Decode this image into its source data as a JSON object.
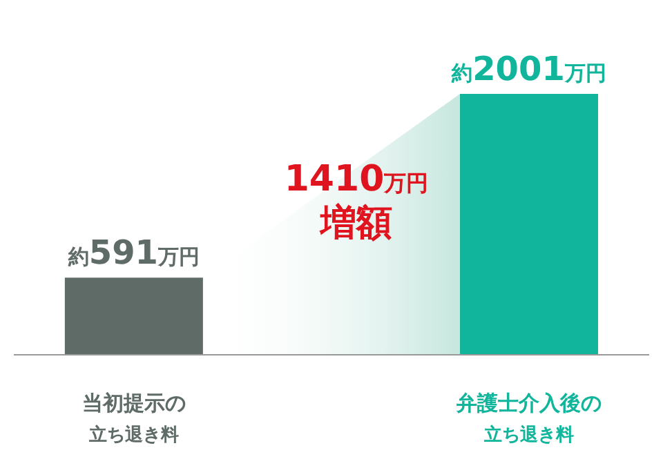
{
  "chart_data": {
    "type": "bar",
    "categories": [
      "当初提示の立ち退き料",
      "弁護士介入後の立ち退き料"
    ],
    "values": [
      591,
      2001
    ],
    "colors": [
      "#5f6b67",
      "#10b59b"
    ],
    "value_labels": [
      "約591万円",
      "約2001万円"
    ],
    "annotations": [
      "1410万円",
      "増額"
    ]
  }
}
